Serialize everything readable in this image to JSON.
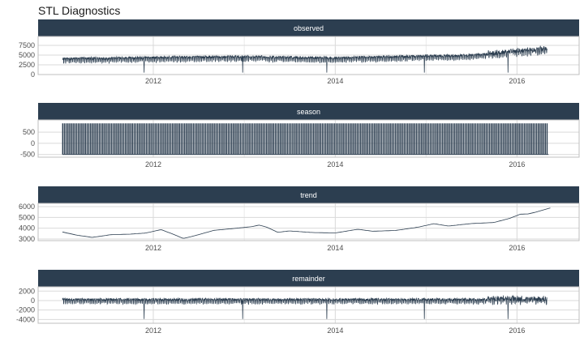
{
  "title": "STL Diagnostics",
  "colors": {
    "strip": "#2c3e50",
    "line": "#2c3e50",
    "grid": "#d9d9d9",
    "minor_grid": "#ebebeb",
    "panel_border": "#bfbfbf"
  },
  "chart_data": {
    "type": "line",
    "x_axis": {
      "type": "date",
      "range": [
        "2011-01-01",
        "2016-06-01"
      ],
      "tick_labels": [
        "2012",
        "2014",
        "2016"
      ]
    },
    "panels": [
      {
        "name": "observed",
        "y_ticks": [
          "0",
          "2500",
          "5000",
          "7500"
        ],
        "ylim": [
          0,
          9800
        ],
        "series": {
          "style": "noisy",
          "base_anchors": [
            [
              "2011-01-01",
              3800
            ],
            [
              "2012-01-01",
              4100
            ],
            [
              "2013-01-01",
              4300
            ],
            [
              "2014-01-01",
              4000
            ],
            [
              "2015-01-01",
              4500
            ],
            [
              "2015-06-01",
              4600
            ],
            [
              "2016-01-01",
              5600
            ],
            [
              "2016-05-01",
              6200
            ]
          ],
          "weekly_amplitude": 700,
          "spike_dates": [
            "2011-11-25",
            "2012-12-25",
            "2013-11-28",
            "2014-12-25",
            "2015-11-26"
          ],
          "spike_value": 500,
          "max": 9300
        }
      },
      {
        "name": "season",
        "y_ticks": [
          "-500",
          "0",
          "500"
        ],
        "ylim": [
          -620,
          1050
        ],
        "series": {
          "style": "weekly",
          "min": -500,
          "max": 880,
          "period_days": 7
        }
      },
      {
        "name": "trend",
        "y_ticks": [
          "3000",
          "4000",
          "5000",
          "6000"
        ],
        "ylim": [
          2850,
          6300
        ],
        "series": {
          "style": "smooth",
          "points": [
            [
              "2011-01-01",
              3650
            ],
            [
              "2011-03-01",
              3350
            ],
            [
              "2011-05-01",
              3150
            ],
            [
              "2011-07-15",
              3400
            ],
            [
              "2011-10-01",
              3450
            ],
            [
              "2011-12-01",
              3550
            ],
            [
              "2012-02-01",
              3870
            ],
            [
              "2012-03-15",
              3500
            ],
            [
              "2012-05-01",
              3050
            ],
            [
              "2012-06-15",
              3300
            ],
            [
              "2012-09-01",
              3800
            ],
            [
              "2012-12-01",
              4000
            ],
            [
              "2013-02-01",
              4150
            ],
            [
              "2013-03-01",
              4290
            ],
            [
              "2013-04-01",
              4100
            ],
            [
              "2013-05-15",
              3620
            ],
            [
              "2013-07-01",
              3750
            ],
            [
              "2013-10-01",
              3600
            ],
            [
              "2014-01-01",
              3560
            ],
            [
              "2014-04-01",
              3900
            ],
            [
              "2014-06-01",
              3720
            ],
            [
              "2014-09-01",
              3790
            ],
            [
              "2014-12-01",
              4100
            ],
            [
              "2015-02-01",
              4420
            ],
            [
              "2015-04-01",
              4200
            ],
            [
              "2015-07-01",
              4430
            ],
            [
              "2015-10-01",
              4530
            ],
            [
              "2015-12-01",
              4900
            ],
            [
              "2016-01-15",
              5300
            ],
            [
              "2016-02-15",
              5320
            ],
            [
              "2016-03-15",
              5480
            ],
            [
              "2016-05-15",
              5880
            ]
          ]
        }
      },
      {
        "name": "remainder",
        "y_ticks": [
          "-4000",
          "-2000",
          "0",
          "2000"
        ],
        "ylim": [
          -4800,
          2900
        ],
        "series": {
          "style": "noisy",
          "base_anchors": [
            [
              "2011-01-01",
              0
            ],
            [
              "2016-05-01",
              0
            ]
          ],
          "weekly_amplitude": 550,
          "spike_dates": [
            "2011-11-25",
            "2012-12-25",
            "2013-11-28",
            "2014-12-25",
            "2015-11-26"
          ],
          "spike_value": -3900,
          "max": 2500
        }
      }
    ]
  }
}
